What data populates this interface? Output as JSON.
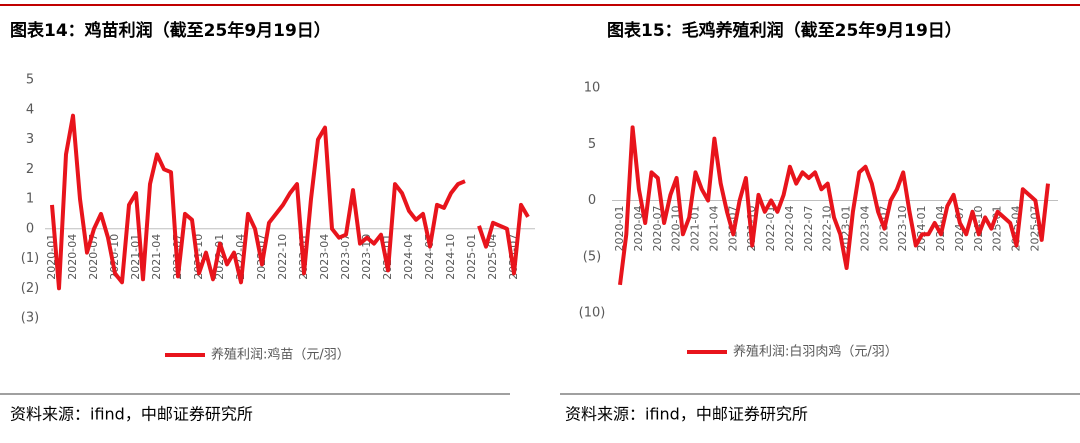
{
  "chart_data": [
    {
      "type": "line",
      "title": "图表14：鸡苗利润（截至25年9月19日）",
      "source": "资料来源：ifind，中邮证券研究所",
      "categories": [
        "2020-01",
        null,
        null,
        "2020-04",
        null,
        null,
        "2020-07",
        null,
        null,
        "2020-10",
        null,
        null,
        "2021-01",
        null,
        null,
        "2021-04",
        null,
        null,
        "2021-07",
        null,
        null,
        "2021-10",
        null,
        null,
        "2022-01",
        null,
        null,
        "2022-04",
        null,
        null,
        "2022-07",
        null,
        null,
        "2022-10",
        null,
        null,
        "2023-01",
        null,
        null,
        "2023-04",
        null,
        null,
        "2023-07",
        null,
        null,
        "2023-10",
        null,
        null,
        "2024-01",
        null,
        null,
        "2024-04",
        null,
        null,
        "2024-07",
        null,
        null,
        "2024-10",
        null,
        null,
        "2025-01",
        null,
        null,
        "2025-04",
        null,
        null,
        "2025-07",
        null,
        null
      ],
      "series": [
        {
          "name": "养殖利润:鸡苗（元/羽）",
          "color": "#e8141c",
          "values": [
            0.8,
            -2,
            2.5,
            3.8,
            1.0,
            -0.8,
            0,
            0.5,
            -0.3,
            -1.5,
            -1.8,
            0.8,
            1.2,
            -1.7,
            1.5,
            2.5,
            2.0,
            1.9,
            -1.6,
            0.5,
            0.3,
            -1.5,
            -0.8,
            -1.7,
            -0.5,
            -1.2,
            -0.8,
            -1.8,
            0.5,
            0,
            -1.2,
            0.2,
            0.5,
            0.8,
            1.2,
            1.5,
            -1.5,
            1.0,
            3.0,
            3.4,
            0,
            -0.3,
            -0.2,
            1.3,
            -0.5,
            -0.3,
            -0.5,
            -0.2,
            -1.4,
            1.5,
            1.2,
            0.6,
            0.3,
            0.5,
            -0.6,
            0.8,
            0.7,
            1.2,
            1.5,
            1.6,
            null,
            0.1,
            -0.6,
            0.2,
            0.1,
            0,
            -1.5,
            0.8,
            0.4
          ]
        }
      ],
      "ylim": [
        -3,
        5
      ],
      "yticks": [
        {
          "value": -3,
          "label": "(3)"
        },
        {
          "value": -2,
          "label": "(2)"
        },
        {
          "value": -1,
          "label": "(1)"
        },
        0,
        1,
        2,
        3,
        4,
        5
      ]
    },
    {
      "type": "line",
      "title": "图表15：毛鸡养殖利润（截至25年9月19日）",
      "source": "资料来源：ifind，中邮证券研究所",
      "categories": [
        "2020-01",
        null,
        null,
        "2020-04",
        null,
        null,
        "2020-07",
        null,
        null,
        "2020-10",
        null,
        null,
        "2021-01",
        null,
        null,
        "2021-04",
        null,
        null,
        "2021-07",
        null,
        null,
        "2021-10",
        null,
        null,
        "2022-01",
        null,
        null,
        "2022-04",
        null,
        null,
        "2022-07",
        null,
        null,
        "2022-10",
        null,
        null,
        "2023-01",
        null,
        null,
        "2023-04",
        null,
        null,
        "2023-07",
        null,
        null,
        "2023-10",
        null,
        null,
        "2024-01",
        null,
        null,
        "2024-04",
        null,
        null,
        "2024-07",
        null,
        null,
        "2024-10",
        null,
        null,
        "2025-01",
        null,
        null,
        "2025-04",
        null,
        null,
        "2025-07",
        null,
        null
      ],
      "series": [
        {
          "name": "养殖利润:白羽肉鸡（元/羽）",
          "color": "#e8141c",
          "values": [
            -7.5,
            -3,
            6.5,
            1,
            -2,
            2.5,
            2,
            -2,
            0.5,
            2,
            -3,
            -1.5,
            2.5,
            1,
            0,
            5.5,
            1.5,
            -1,
            -3,
            0,
            2,
            -4,
            0.5,
            -1,
            0,
            -1,
            0.5,
            3,
            1.5,
            2.5,
            2,
            2.5,
            1,
            1.5,
            -1.5,
            -3,
            -6,
            -1,
            2.5,
            3,
            1.5,
            -1,
            -2.5,
            0,
            1,
            2.5,
            -1,
            -4,
            -3,
            -3,
            -2,
            -3,
            -0.5,
            0.5,
            -2,
            -3,
            -1,
            -3,
            -1.5,
            -2.5,
            -1,
            -1.5,
            -2,
            -4,
            1,
            0.5,
            0,
            -3.5,
            1.5
          ]
        }
      ],
      "ylim": [
        -10,
        10
      ],
      "yticks": [
        {
          "value": -10,
          "label": "(10)"
        },
        {
          "value": -5,
          "label": "(5)"
        },
        0,
        5,
        10
      ]
    }
  ]
}
